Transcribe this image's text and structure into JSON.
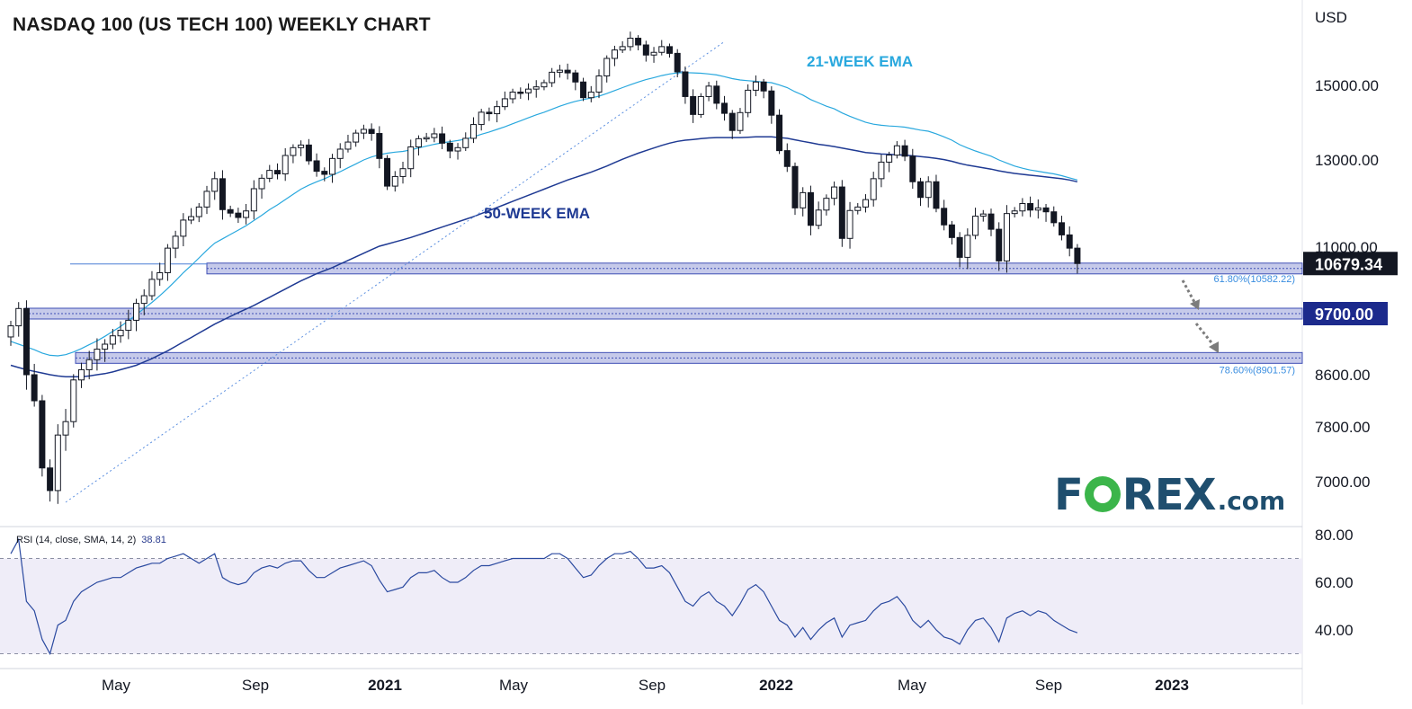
{
  "title": "NASDAQ 100 (US TECH 100) WEEKLY CHART",
  "currency": "USD",
  "colors": {
    "up_candle": "#ffffff",
    "down_candle": "#131722",
    "ema21": "#29a8de",
    "ema50": "#1f3a93",
    "trendline": "#5b8fe0",
    "zone_fill": "#b3b8e3",
    "zone_line": "#3f4fb5",
    "rsi_line": "#2b4aa0",
    "rsi_band": "#efedf8",
    "price_tag_bg": "#131722",
    "level_tag_bg": "#1c2a8c"
  },
  "logo": {
    "name": "forex-com-logo",
    "prefix": "F",
    "suffix": "REX",
    "tld": ".com"
  },
  "chart_data": {
    "type": "candlestick",
    "interval": "weekly",
    "price_axis": {
      "ticks": [
        "15000.00",
        "13000.00",
        "11000.00",
        "8600.00",
        "7800.00",
        "7000.00"
      ]
    },
    "time_axis": {
      "ticks": [
        "May",
        "Sep",
        "2021",
        "May",
        "Sep",
        "2022",
        "May",
        "Sep",
        "2023"
      ]
    },
    "last_price": "10679.34",
    "levels": [
      {
        "label": "9700.00",
        "tag": true
      },
      {
        "label": "61.80%(10582.22)",
        "fib": true
      },
      {
        "label": "78.60%(8901.57)",
        "fib": true
      }
    ],
    "annotations": {
      "ema21_label": "21-WEEK EMA",
      "ema50_label": "50-WEEK EMA"
    },
    "close": [
      9480,
      9800,
      8600,
      8200,
      7200,
      6870,
      7680,
      7880,
      8520,
      8690,
      8870,
      9060,
      9150,
      9300,
      9400,
      9580,
      9900,
      10050,
      10370,
      10500,
      10980,
      11250,
      11620,
      11700,
      11920,
      12280,
      12570,
      11860,
      11780,
      11680,
      11830,
      12340,
      12580,
      12760,
      12680,
      13120,
      13330,
      13400,
      12980,
      12740,
      12670,
      13040,
      13290,
      13480,
      13720,
      13820,
      13710,
      13040,
      12400,
      12620,
      12800,
      13350,
      13570,
      13600,
      13700,
      13450,
      13240,
      13330,
      13580,
      13950,
      14280,
      14240,
      14430,
      14640,
      14820,
      14800,
      14900,
      14960,
      15080,
      15390,
      15450,
      15370,
      15100,
      14670,
      14820,
      15280,
      15800,
      16050,
      16150,
      16400,
      16200,
      15900,
      15980,
      16150,
      15950,
      15400,
      14700,
      14220,
      14700,
      14980,
      14520,
      14250,
      13790,
      14270,
      14870,
      15100,
      14850,
      14200,
      13250,
      12850,
      11900,
      12250,
      11500,
      11850,
      12120,
      12380,
      11200,
      11840,
      11920,
      12090,
      12570,
      12950,
      13130,
      13380,
      13100,
      12500,
      12140,
      12500,
      11890,
      11510,
      11220,
      10800,
      11270,
      11710,
      11760,
      11410,
      10730,
      11770,
      11830,
      12000,
      11850,
      11900,
      11810,
      11560,
      11280,
      10980,
      10679.34
    ],
    "ema21": [
      9200,
      9150,
      9100,
      9050,
      8990,
      8950,
      8940,
      8960,
      9010,
      9070,
      9140,
      9210,
      9290,
      9380,
      9470,
      9570,
      9680,
      9800,
      9920,
      10050,
      10190,
      10340,
      10500,
      10640,
      10790,
      10940,
      11090,
      11190,
      11290,
      11390,
      11490,
      11610,
      11730,
      11860,
      11970,
      12090,
      12210,
      12330,
      12420,
      12500,
      12570,
      12650,
      12730,
      12820,
      12910,
      13000,
      13080,
      13140,
      13180,
      13210,
      13230,
      13270,
      13320,
      13370,
      13420,
      13460,
      13490,
      13520,
      13560,
      13620,
      13690,
      13750,
      13820,
      13890,
      13970,
      14050,
      14130,
      14210,
      14280,
      14360,
      14440,
      14510,
      14570,
      14620,
      14660,
      14710,
      14780,
      14860,
      14940,
      15020,
      15100,
      15170,
      15230,
      15290,
      15340,
      15370,
      15380,
      15370,
      15360,
      15340,
      15310,
      15260,
      15200,
      15160,
      15140,
      15120,
      15100,
      15080,
      15010,
      14940,
      14830,
      14740,
      14620,
      14530,
      14440,
      14370,
      14260,
      14170,
      14090,
      14010,
      13960,
      13930,
      13910,
      13900,
      13880,
      13840,
      13800,
      13770,
      13700,
      13620,
      13530,
      13410,
      13320,
      13240,
      13170,
      13100,
      13000,
      12930,
      12860,
      12810,
      12770,
      12740,
      12710,
      12680,
      12640,
      12590,
      12540
    ],
    "ema50": [
      8770,
      8730,
      8690,
      8660,
      8630,
      8600,
      8580,
      8570,
      8570,
      8570,
      8580,
      8600,
      8620,
      8650,
      8690,
      8730,
      8770,
      8830,
      8890,
      8960,
      9030,
      9110,
      9190,
      9270,
      9350,
      9430,
      9510,
      9580,
      9650,
      9720,
      9790,
      9860,
      9940,
      10020,
      10100,
      10180,
      10260,
      10340,
      10410,
      10480,
      10540,
      10600,
      10670,
      10740,
      10810,
      10880,
      10950,
      11020,
      11070,
      11120,
      11170,
      11220,
      11280,
      11340,
      11400,
      11460,
      11520,
      11580,
      11640,
      11700,
      11770,
      11840,
      11910,
      11980,
      12050,
      12120,
      12190,
      12260,
      12330,
      12400,
      12470,
      12540,
      12600,
      12660,
      12720,
      12790,
      12860,
      12940,
      13020,
      13100,
      13180,
      13250,
      13320,
      13390,
      13450,
      13500,
      13530,
      13550,
      13570,
      13590,
      13600,
      13600,
      13600,
      13600,
      13610,
      13620,
      13620,
      13620,
      13600,
      13580,
      13540,
      13500,
      13460,
      13420,
      13390,
      13360,
      13320,
      13280,
      13240,
      13200,
      13180,
      13160,
      13150,
      13140,
      13130,
      13110,
      13090,
      13070,
      13040,
      13010,
      12970,
      12920,
      12880,
      12850,
      12820,
      12790,
      12750,
      12720,
      12690,
      12670,
      12650,
      12630,
      12610,
      12590,
      12570,
      12540,
      12500
    ],
    "rsi_indicator": {
      "legend_label": "RSI (14, close, SMA, 14, 2)",
      "current_value": "38.81",
      "y_ticks": [
        "80.00",
        "60.00",
        "40.00"
      ],
      "upper_band": 70,
      "lower_band": 30,
      "values": [
        72,
        78,
        52,
        48,
        36,
        30,
        42,
        44,
        52,
        56,
        58,
        60,
        61,
        62,
        62,
        64,
        66,
        67,
        68,
        68,
        70,
        71,
        72,
        70,
        68,
        70,
        72,
        62,
        60,
        59,
        60,
        64,
        66,
        67,
        66,
        68,
        69,
        69,
        65,
        62,
        62,
        64,
        66,
        67,
        68,
        69,
        67,
        61,
        56,
        57,
        58,
        62,
        64,
        64,
        65,
        62,
        60,
        60,
        62,
        65,
        67,
        67,
        68,
        69,
        70,
        70,
        70,
        70,
        70,
        72,
        72,
        70,
        66,
        62,
        63,
        67,
        70,
        72,
        72,
        73,
        70,
        66,
        66,
        67,
        64,
        58,
        52,
        50,
        54,
        56,
        52,
        50,
        46,
        51,
        57,
        59,
        56,
        50,
        44,
        42,
        37,
        41,
        36,
        40,
        43,
        45,
        37,
        42,
        43,
        44,
        48,
        51,
        52,
        54,
        50,
        44,
        41,
        44,
        40,
        37,
        36,
        34,
        40,
        44,
        45,
        41,
        35,
        45,
        47,
        48,
        46,
        48,
        47,
        44,
        42,
        40,
        38.81
      ]
    }
  }
}
